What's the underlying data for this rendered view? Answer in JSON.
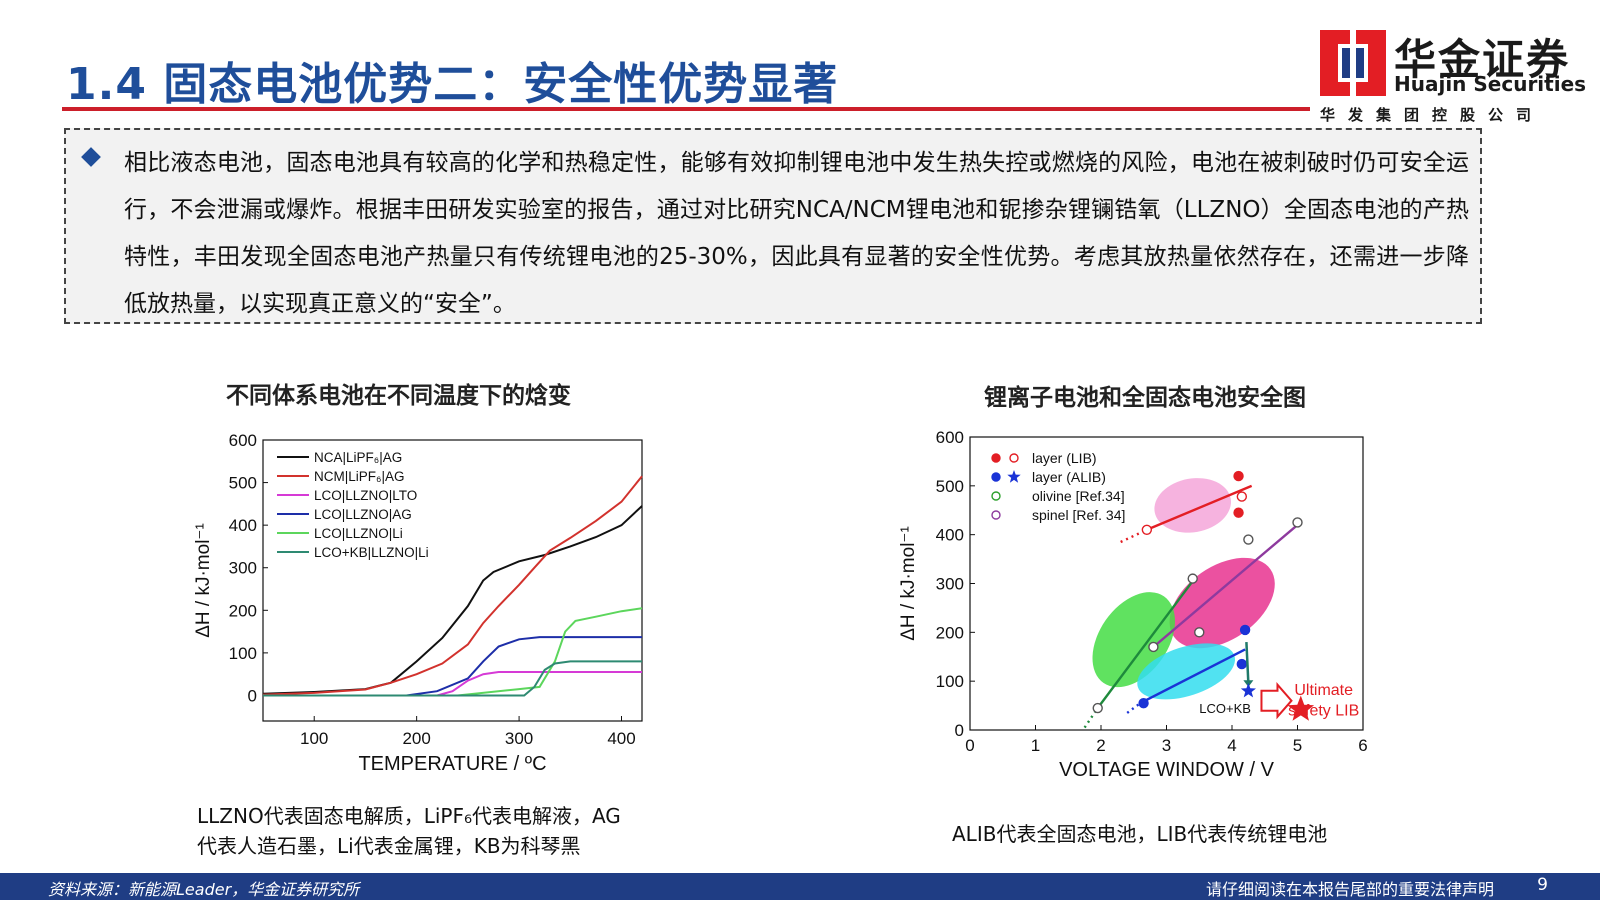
{
  "header": {
    "title": "1.4 固态电池优势二：安全性优势显著"
  },
  "logo": {
    "name_cn": "华金证券",
    "name_en": "Huajin Securities",
    "subtitle": "华发集团控股公司",
    "colors": {
      "red": "#e31e24",
      "blue": "#1f3d84"
    }
  },
  "body": {
    "bullet_icon": "diamond-bullet-icon",
    "paragraph": "相比液态电池，固态电池具有较高的化学和热稳定性，能够有效抑制锂电池中发生热失控或燃烧的风险，电池在被刺破时仍可安全运行，不会泄漏或爆炸。根据丰田研发实验室的报告，通过对比研究NCA/NCM锂电池和铌掺杂锂镧锆氧（LLZNO）全固态电池的产热特性，丰田发现全固态电池产热量只有传统锂电池的25-30%，因此具有显著的安全性优势。考虑其放热量依然存在，还需进一步降低放热量，以实现真正意义的“安全”。"
  },
  "left_caption": {
    "title": "不同体系电池在不同温度下的焓变",
    "note_line1": "LLZNO代表固态电解质，LiPF₆代表电解液，AG",
    "note_line2": "代表人造石墨，Li代表金属锂，KB为科琴黑"
  },
  "right_caption": {
    "title": "锂离子电池和全固态电池安全图",
    "note": "ALIB代表全固态电池，LIB代表传统锂电池"
  },
  "footer": {
    "source": "资料来源：新能源Leader，华金证券研究所",
    "disclaimer": "请仔细阅读在本报告尾部的重要法律声明",
    "page": "9"
  },
  "chart_data": [
    {
      "type": "line",
      "xlabel": "TEMPERATURE / ºC",
      "ylabel": "ΔH / kJ·mol⁻¹",
      "xlim": [
        50,
        420
      ],
      "ylim": [
        -60,
        600
      ],
      "xticks": [
        100,
        200,
        300,
        400
      ],
      "yticks": [
        0,
        100,
        200,
        300,
        400,
        500,
        600
      ],
      "grid": false,
      "legend_position": "top-left",
      "series": [
        {
          "name": "NCA|LiPF₆|AG",
          "color": "#111111",
          "points": [
            [
              50,
              4
            ],
            [
              100,
              8
            ],
            [
              150,
              15
            ],
            [
              175,
              30
            ],
            [
              200,
              80
            ],
            [
              225,
              135
            ],
            [
              250,
              210
            ],
            [
              265,
              270
            ],
            [
              275,
              290
            ],
            [
              300,
              315
            ],
            [
              325,
              330
            ],
            [
              350,
              350
            ],
            [
              375,
              372
            ],
            [
              400,
              400
            ],
            [
              420,
              445
            ]
          ]
        },
        {
          "name": "NCM|LiPF₆|AG",
          "color": "#d2322d",
          "points": [
            [
              50,
              2
            ],
            [
              100,
              6
            ],
            [
              150,
              14
            ],
            [
              175,
              30
            ],
            [
              200,
              50
            ],
            [
              225,
              75
            ],
            [
              250,
              120
            ],
            [
              265,
              170
            ],
            [
              280,
              210
            ],
            [
              300,
              260
            ],
            [
              315,
              300
            ],
            [
              330,
              340
            ],
            [
              350,
              370
            ],
            [
              375,
              410
            ],
            [
              400,
              455
            ],
            [
              420,
              515
            ]
          ]
        },
        {
          "name": "LCO|LLZNO|LTO",
          "color": "#d63ad6",
          "points": [
            [
              50,
              0
            ],
            [
              220,
              0
            ],
            [
              235,
              10
            ],
            [
              250,
              35
            ],
            [
              265,
              50
            ],
            [
              280,
              55
            ],
            [
              420,
              55
            ]
          ]
        },
        {
          "name": "LCO|LLZNO|AG",
          "color": "#1d2ea8",
          "points": [
            [
              50,
              0
            ],
            [
              190,
              0
            ],
            [
              220,
              10
            ],
            [
              250,
              40
            ],
            [
              265,
              80
            ],
            [
              280,
              115
            ],
            [
              300,
              132
            ],
            [
              320,
              137
            ],
            [
              420,
              137
            ]
          ]
        },
        {
          "name": "LCO|LLZNO|Li",
          "color": "#5cd65c",
          "points": [
            [
              50,
              0
            ],
            [
              240,
              0
            ],
            [
              300,
              15
            ],
            [
              320,
              20
            ],
            [
              335,
              80
            ],
            [
              345,
              150
            ],
            [
              355,
              175
            ],
            [
              375,
              185
            ],
            [
              400,
              198
            ],
            [
              420,
              205
            ]
          ]
        },
        {
          "name": "LCO+KB|LLZNO|Li",
          "color": "#2e8a72",
          "points": [
            [
              50,
              0
            ],
            [
              305,
              0
            ],
            [
              315,
              20
            ],
            [
              325,
              60
            ],
            [
              335,
              75
            ],
            [
              350,
              80
            ],
            [
              420,
              80
            ]
          ]
        }
      ]
    },
    {
      "type": "scatter",
      "xlabel": "VOLTAGE WINDOW / V",
      "ylabel": "ΔH / kJ·mol⁻¹",
      "xlim": [
        0,
        6
      ],
      "ylim": [
        0,
        600
      ],
      "xticks": [
        0,
        1,
        2,
        3,
        4,
        5,
        6
      ],
      "yticks": [
        0,
        100,
        200,
        300,
        400,
        500,
        600
      ],
      "grid": false,
      "legend_position": "top-left",
      "legend": [
        {
          "label": "layer (LIB)",
          "color": "#e31e24"
        },
        {
          "label": "layer (ALIB)",
          "color": "#1a33d6"
        },
        {
          "label": "olivine [Ref.34]",
          "color": "#2ca02c"
        },
        {
          "label": "spinel [Ref. 34]",
          "color": "#8e3a9e"
        }
      ],
      "regions": [
        {
          "name": "LIB layer",
          "color": "#f4a6d9",
          "center": [
            3.4,
            460
          ],
          "rx": 0.95,
          "ry": 55,
          "angle_deg": -10
        },
        {
          "name": "spinel",
          "color": "#e8338f",
          "center": [
            3.85,
            260
          ],
          "rx": 1.45,
          "ry": 75,
          "angle_deg": -35
        },
        {
          "name": "olivine",
          "color": "#44dd44",
          "center": [
            2.5,
            185
          ],
          "rx": 1.3,
          "ry": 70,
          "angle_deg": -55
        },
        {
          "name": "ALIB layer",
          "color": "#33ddee",
          "center": [
            3.3,
            120
          ],
          "rx": 1.25,
          "ry": 50,
          "angle_deg": -18
        }
      ],
      "fit_lines": [
        {
          "color": "#e31e24",
          "from": [
            2.7,
            410
          ],
          "to": [
            4.3,
            500
          ]
        },
        {
          "color": "#8e3a9e",
          "from": [
            2.8,
            170
          ],
          "to": [
            5.0,
            420
          ]
        },
        {
          "color": "#1e8a3c",
          "from": [
            1.95,
            45
          ],
          "to": [
            3.4,
            305
          ]
        },
        {
          "color": "#1a33d6",
          "from": [
            2.6,
            55
          ],
          "to": [
            4.2,
            165
          ]
        }
      ],
      "points": [
        {
          "series": "layer (LIB)",
          "x": 2.7,
          "y": 410,
          "filled": false
        },
        {
          "series": "layer (LIB)",
          "x": 4.1,
          "y": 520,
          "filled": true
        },
        {
          "series": "layer (LIB)",
          "x": 4.15,
          "y": 478,
          "filled": false
        },
        {
          "series": "layer (LIB)",
          "x": 4.1,
          "y": 445,
          "filled": true
        },
        {
          "series": "layer (ALIB)",
          "x": 2.65,
          "y": 55,
          "filled": true
        },
        {
          "series": "layer (ALIB)",
          "x": 4.2,
          "y": 205,
          "filled": true
        },
        {
          "series": "layer (ALIB)",
          "x": 4.15,
          "y": 135,
          "filled": true
        },
        {
          "series": "olivine [Ref.34]",
          "x": 1.95,
          "y": 45,
          "filled": false
        },
        {
          "series": "olivine [Ref.34]",
          "x": 3.4,
          "y": 310,
          "filled": false
        },
        {
          "series": "spinel [Ref. 34]",
          "x": 2.8,
          "y": 170,
          "filled": false
        },
        {
          "series": "spinel [Ref. 34]",
          "x": 3.5,
          "y": 200,
          "filled": false
        },
        {
          "series": "spinel [Ref. 34]",
          "x": 4.25,
          "y": 390,
          "filled": false
        },
        {
          "series": "spinel [Ref. 34]",
          "x": 5.0,
          "y": 425,
          "filled": false
        }
      ],
      "stars": [
        {
          "label": "LCO+KB",
          "x": 4.25,
          "y": 80,
          "color": "#1a33d6"
        },
        {
          "label": "Ultimate safety LIB",
          "x": 5.05,
          "y": 42,
          "color": "#e31e24"
        }
      ],
      "annotations": [
        {
          "text": "LCO+KB"
        },
        {
          "text": "Ultimate"
        },
        {
          "text": "safety LIB"
        }
      ]
    }
  ]
}
